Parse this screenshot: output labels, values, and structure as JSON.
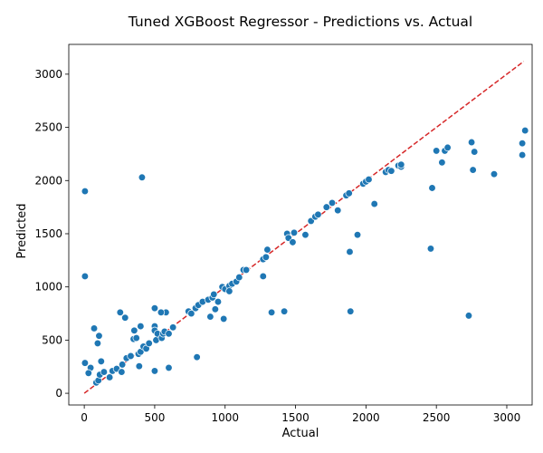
{
  "chart_data": {
    "type": "scatter",
    "title": "Tuned XGBoost Regressor - Predictions vs. Actual",
    "xlabel": "Actual",
    "ylabel": "Predicted",
    "xlim": [
      -110,
      3180
    ],
    "ylim": [
      -110,
      3280
    ],
    "xticks": [
      0,
      500,
      1000,
      1500,
      2000,
      2500,
      3000
    ],
    "yticks": [
      0,
      500,
      1000,
      1500,
      2000,
      2500,
      3000
    ],
    "grid": false,
    "point_color": "#1f77b4",
    "point_edge_color": "#ffffff",
    "reference_line": {
      "style": "dashed",
      "color": "#d62728",
      "from": [
        0,
        0
      ],
      "to": [
        3120,
        3120
      ]
    },
    "points": [
      [
        5,
        1900
      ],
      [
        5,
        1100
      ],
      [
        410,
        2030
      ],
      [
        5,
        285
      ],
      [
        45,
        240
      ],
      [
        30,
        190
      ],
      [
        70,
        610
      ],
      [
        105,
        540
      ],
      [
        95,
        470
      ],
      [
        120,
        300
      ],
      [
        85,
        100
      ],
      [
        100,
        120
      ],
      [
        110,
        175
      ],
      [
        140,
        200
      ],
      [
        180,
        150
      ],
      [
        200,
        210
      ],
      [
        230,
        230
      ],
      [
        265,
        200
      ],
      [
        255,
        760
      ],
      [
        290,
        710
      ],
      [
        270,
        270
      ],
      [
        300,
        330
      ],
      [
        330,
        350
      ],
      [
        355,
        590
      ],
      [
        350,
        510
      ],
      [
        370,
        520
      ],
      [
        400,
        630
      ],
      [
        385,
        370
      ],
      [
        400,
        390
      ],
      [
        420,
        440
      ],
      [
        440,
        420
      ],
      [
        460,
        470
      ],
      [
        390,
        255
      ],
      [
        500,
        800
      ],
      [
        500,
        630
      ],
      [
        500,
        590
      ],
      [
        510,
        500
      ],
      [
        520,
        560
      ],
      [
        550,
        520
      ],
      [
        560,
        560
      ],
      [
        570,
        580
      ],
      [
        580,
        760
      ],
      [
        545,
        760
      ],
      [
        600,
        560
      ],
      [
        630,
        620
      ],
      [
        500,
        210
      ],
      [
        600,
        240
      ],
      [
        740,
        770
      ],
      [
        760,
        750
      ],
      [
        790,
        800
      ],
      [
        810,
        830
      ],
      [
        840,
        860
      ],
      [
        880,
        880
      ],
      [
        910,
        900
      ],
      [
        920,
        930
      ],
      [
        950,
        860
      ],
      [
        980,
        1000
      ],
      [
        1000,
        980
      ],
      [
        1030,
        1010
      ],
      [
        1050,
        1030
      ],
      [
        1080,
        1050
      ],
      [
        1100,
        1090
      ],
      [
        1130,
        1160
      ],
      [
        1150,
        1160
      ],
      [
        895,
        720
      ],
      [
        990,
        700
      ],
      [
        930,
        790
      ],
      [
        800,
        340
      ],
      [
        1030,
        960
      ],
      [
        1270,
        1260
      ],
      [
        1290,
        1280
      ],
      [
        1300,
        1350
      ],
      [
        1270,
        1100
      ],
      [
        1330,
        760
      ],
      [
        1420,
        770
      ],
      [
        1440,
        1500
      ],
      [
        1450,
        1460
      ],
      [
        1480,
        1420
      ],
      [
        1490,
        1510
      ],
      [
        1570,
        1490
      ],
      [
        1610,
        1620
      ],
      [
        1640,
        1660
      ],
      [
        1660,
        1680
      ],
      [
        1720,
        1750
      ],
      [
        1760,
        1790
      ],
      [
        1800,
        1720
      ],
      [
        1860,
        1860
      ],
      [
        1880,
        1880
      ],
      [
        1940,
        1490
      ],
      [
        1885,
        1330
      ],
      [
        1890,
        770
      ],
      [
        1980,
        1970
      ],
      [
        2000,
        1990
      ],
      [
        2020,
        2010
      ],
      [
        2060,
        1780
      ],
      [
        2140,
        2080
      ],
      [
        2160,
        2100
      ],
      [
        2180,
        2090
      ],
      [
        2230,
        2140
      ],
      [
        2250,
        2130
      ],
      [
        2250,
        2150
      ],
      [
        2470,
        1930
      ],
      [
        2460,
        1360
      ],
      [
        2500,
        2280
      ],
      [
        2540,
        2170
      ],
      [
        2560,
        2280
      ],
      [
        2580,
        2310
      ],
      [
        2730,
        730
      ],
      [
        2750,
        2360
      ],
      [
        2760,
        2100
      ],
      [
        2770,
        2270
      ],
      [
        2910,
        2060
      ],
      [
        3110,
        2350
      ],
      [
        3110,
        2240
      ],
      [
        3130,
        2470
      ]
    ]
  }
}
